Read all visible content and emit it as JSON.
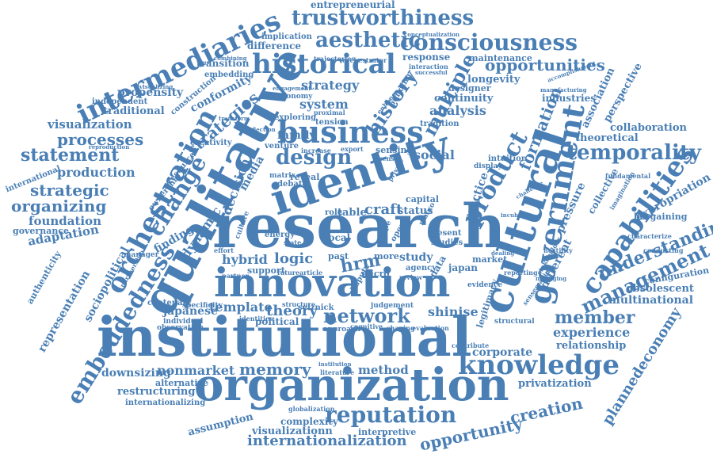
{
  "color": "#4a7fb5",
  "words": {
    "research": "research",
    "institutional": "institutional",
    "innovation": "innovation",
    "organization": "organization",
    "qualitative": "qualitative",
    "identity": "identity",
    "cultural": "cultural",
    "business": "business",
    "government": "government",
    "capabilities": "capabilities",
    "orchestration": "orchestration",
    "intermediaries": "intermediaries",
    "historical": "historical",
    "knowledge": "knowledge",
    "consciousness": "consciousness",
    "trustworthiness": "trustworthiness",
    "aesthetic": "aesthetic",
    "reputation": "reputation",
    "internationalization": "internationalization",
    "opportunity": "opportunity",
    "creation": "creation",
    "management": "management",
    "temporality": "temporality",
    "product": "product",
    "embeddedness": "embeddedness",
    "design": "design",
    "change": "change",
    "history": "history",
    "multiple": "multiple",
    "strategies": "strategies",
    "processes": "processes",
    "statement": "statement",
    "strategic": "strategic",
    "organizing": "organizing",
    "network": "network",
    "memory": "memory",
    "member": "member",
    "understanding": "understanding",
    "opportunities": "opportunities",
    "decision": "decision",
    "formation": "formation",
    "visualization": "visualization",
    "production": "production",
    "foundation": "foundation",
    "adaptation": "adaptation",
    "representation": "representation",
    "sociopolitical": "sociopolitical",
    "downsizing": "downsizing",
    "nonmarket": "nonmarket",
    "method": "method",
    "theory": "theory",
    "template": "template",
    "hybrid": "hybrid",
    "logic": "logic",
    "hrm": "hrm",
    "strategy": "strategy",
    "system": "system",
    "analysis": "analysis",
    "social": "social",
    "craft": "craft",
    "study": "study",
    "shinise": "shinise",
    "corporate": "corporate",
    "experience": "experience",
    "relationship": "relationship",
    "privatization": "privatization",
    "plannedeconomy": "plannedeconomy",
    "expropriation": "expropriation",
    "collaboration": "collaboration",
    "theoretical": "theoretical",
    "pressure": "pressure",
    "different": "different",
    "multinational": "multinational",
    "obsolescent": "obsolescent",
    "configuration": "configuration",
    "bargaining": "bargaining",
    "restructuring": "restructuring",
    "alternative": "alternative",
    "internationalizing": "internationalizing",
    "assumption": "assumption",
    "complexity": "complexity",
    "visualizationn": "visualizationn",
    "interpretive": "interpretive",
    "dynamic": "dynamic",
    "finding": "finding",
    "japanese": "japanese",
    "political": "political",
    "entrepreneurial": "entrepreneurial",
    "difference": "difference",
    "implication": "implication",
    "transition": "transition",
    "embedding": "embedding",
    "propensity": "propensity",
    "independent": "independent",
    "traditional": "traditional",
    "conformity": "conformity",
    "family": "family",
    "continuity": "continuity",
    "longevity": "longevity",
    "designer": "designer",
    "response": "response",
    "maintenance": "maintenance",
    "industries": "industries",
    "association": "association",
    "perspective": "perspective",
    "governance": "governance",
    "international": "international",
    "authenticity": "authenticity",
    "centenary": "centenary",
    "specificity": "specificity",
    "individual": "individual",
    "observation": "observation",
    "identities": "identities",
    "selznick": "selznick",
    "judgement": "judgement",
    "approach": "approach",
    "cognitive": "cognitive",
    "shaping": "shaping",
    "evaluation": "evaluation",
    "legitimacy": "legitimacy",
    "structural": "structural",
    "contribute": "contribute",
    "evidence": "evidence",
    "market": "market",
    "japan": "japan",
    "agency": "agency",
    "micro": "micro",
    "more": "more",
    "local": "local",
    "past": "past",
    "support": "support",
    "future": "future",
    "article": "article",
    "energy": "energy",
    "state": "state",
    "culture": "culture",
    "table": "table",
    "role": "role",
    "status": "status",
    "capital": "capital",
    "present": "present",
    "studies": "studies",
    "practice": "practice",
    "intuition": "intuition",
    "display": "display",
    "sensing": "sensing",
    "export": "export",
    "increase": "increase",
    "venture": "venture",
    "matrix": "matrix",
    "reveal": "reveal",
    "debate": "debate",
    "media": "media",
    "ownership": "ownership",
    "resource": "resource",
    "creativity": "creativity",
    "construction": "construction",
    "exploring": "exploring",
    "economy": "economy",
    "tension": "tension",
    "building": "building",
    "enhance": "enhance",
    "tradition": "tradition",
    "fundamental": "fundamental",
    "collective": "collective",
    "imagination": "imagination",
    "reporting": "reporting",
    "sensemaking": "sensemaking",
    "stakeholder": "stakeholder",
    "hostility": "hostility",
    "characterize": "characterize",
    "conducting": "conducting",
    "manufacturing": "manufacturing",
    "accomplishment": "accomplishment",
    "conceptualization": "conceptualization",
    "orchestrator": "orchestrator",
    "trajectories": "trajectories",
    "combining": "combining",
    "interaction": "interaction",
    "successful": "successful",
    "visualizing": "visualizing",
    "reproduction": "reproduction",
    "partnership": "partnership",
    "manager": "manager",
    "effort": "effort",
    "partner": "partner",
    "structure": "structure",
    "dispute": "dispute",
    "globalization": "globalization",
    "institution": "institution",
    "literature": "literature",
    "managing": "managing",
    "incubator": "incubator",
    "challenge": "challenge",
    "dealing": "dealing",
    "private": "private",
    "macro": "macro",
    "review": "review",
    "data": "data",
    "open": "open",
    "type": "type",
    "sense": "sense",
    "engagement": "engagement",
    "transform": "transform",
    "reflection": "reflection",
    "proximal": "proximal"
  }
}
